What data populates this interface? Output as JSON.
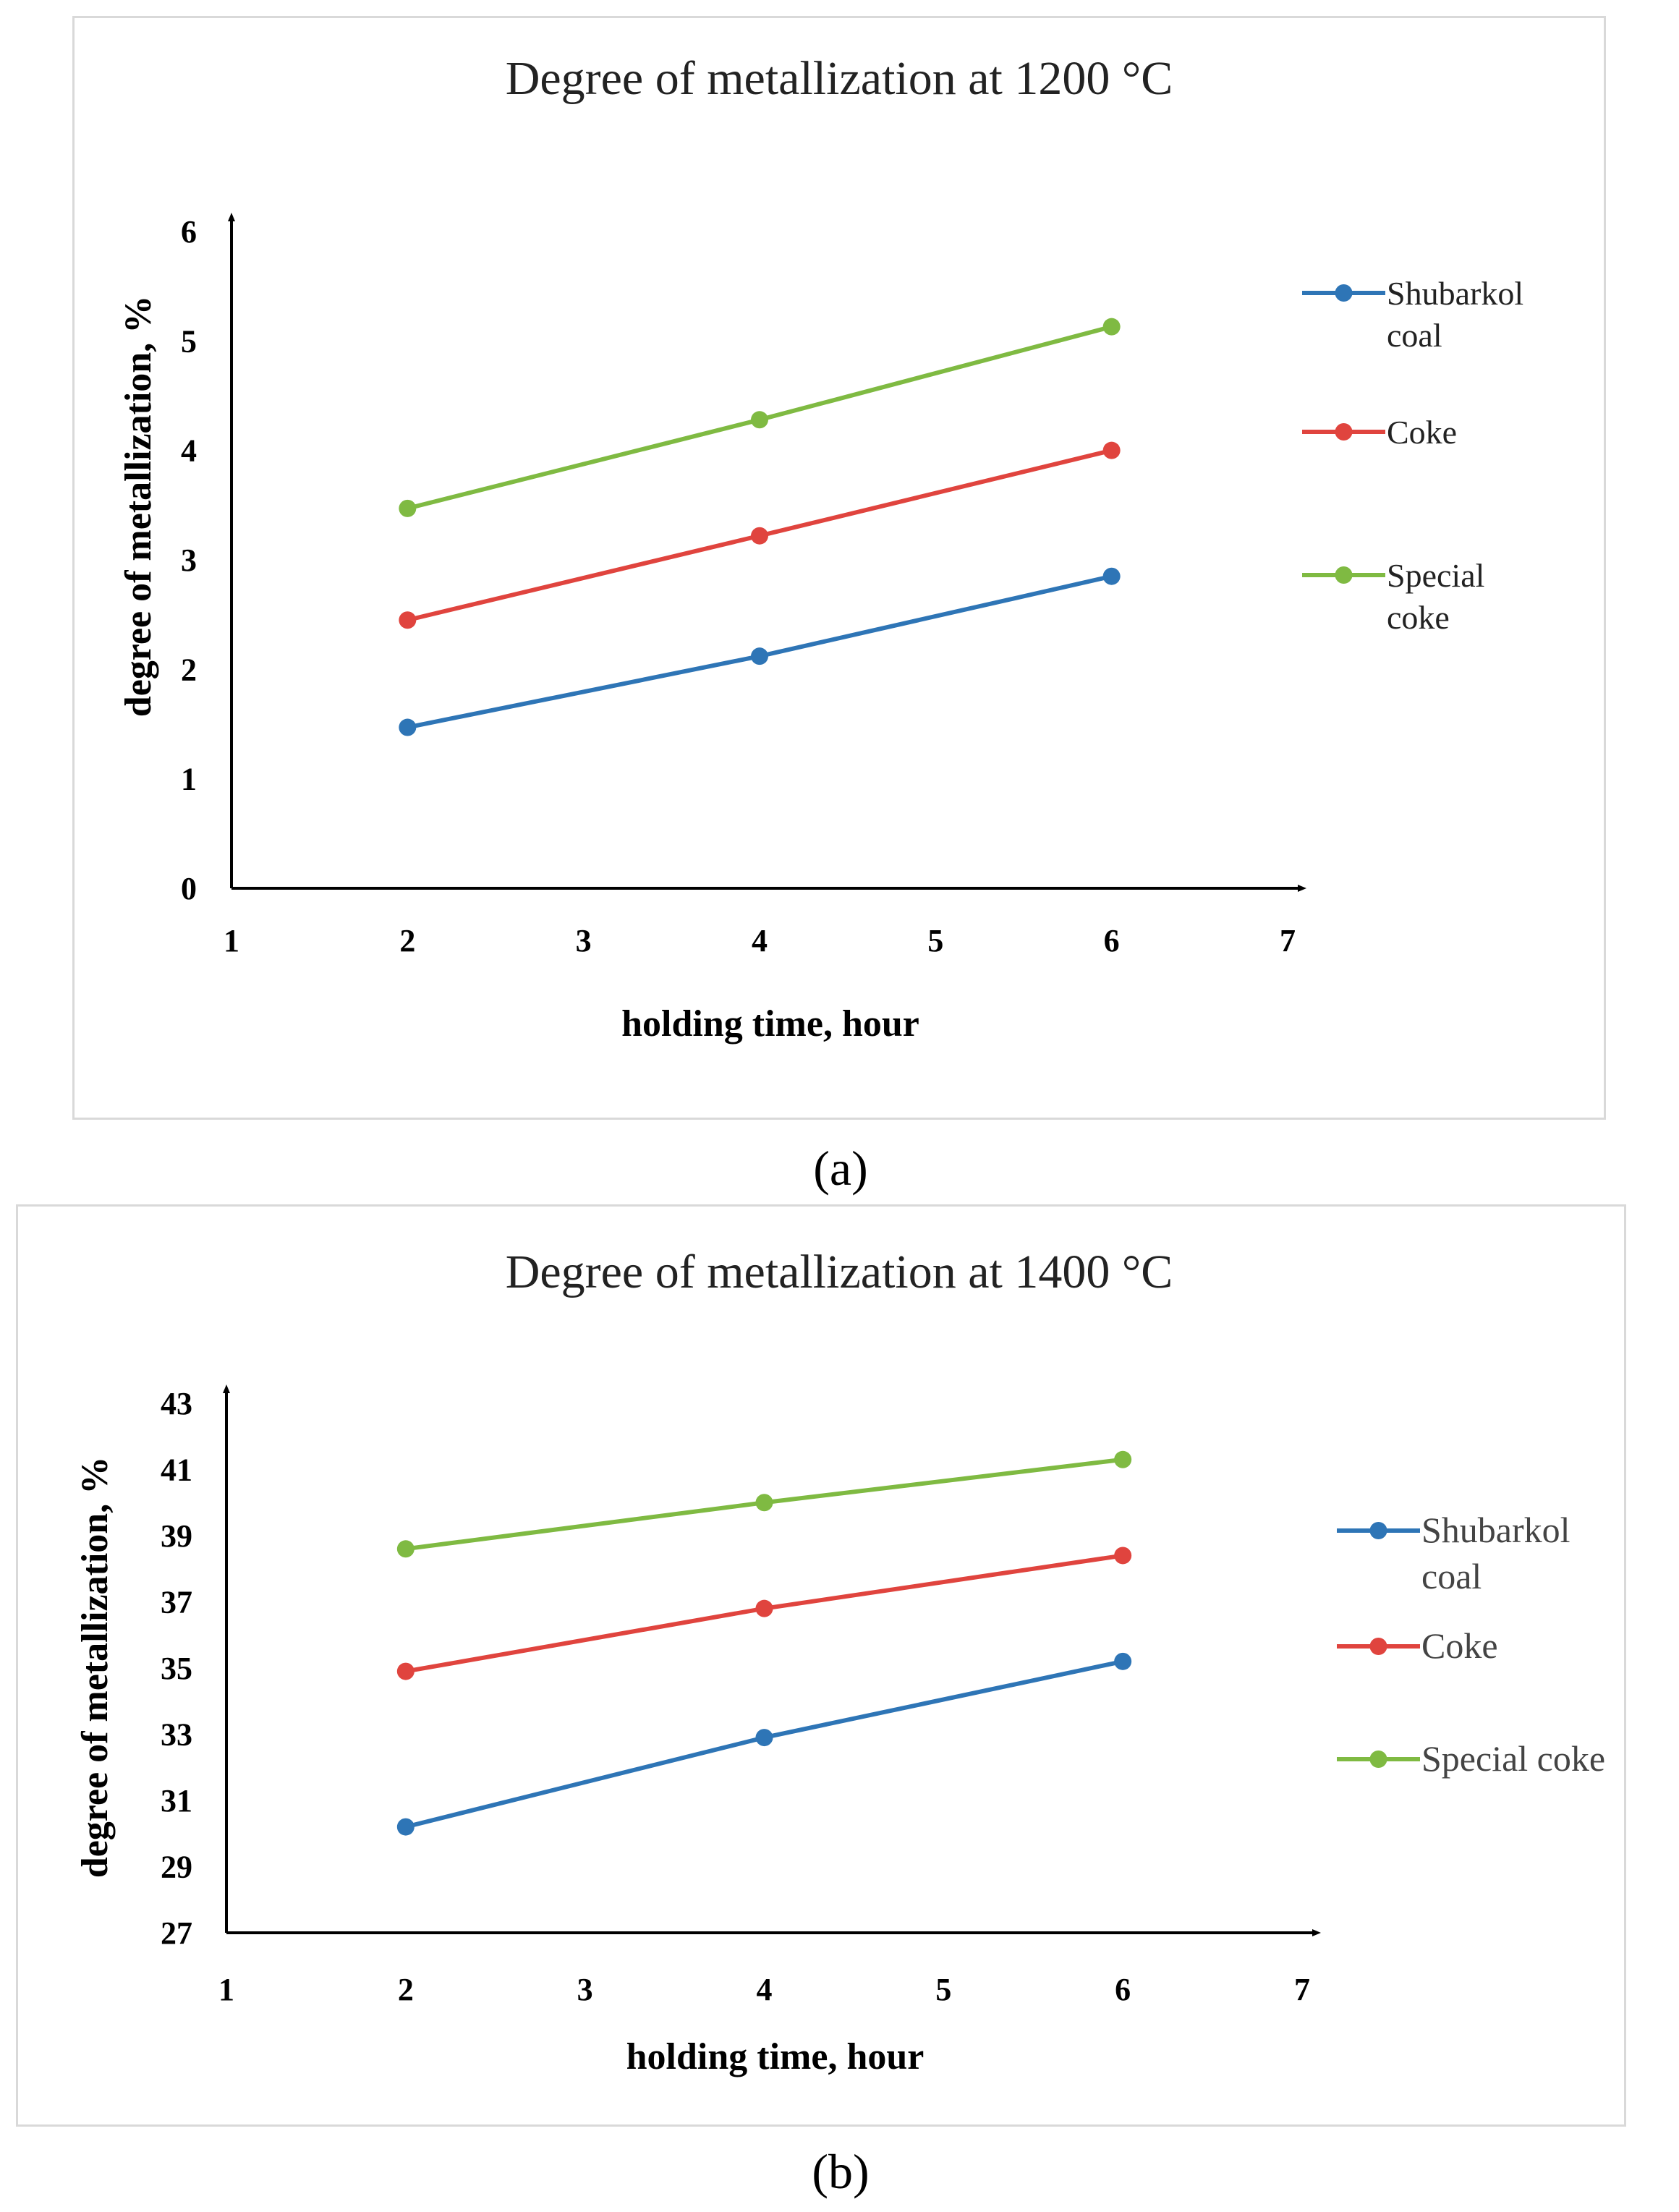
{
  "chart_data": [
    {
      "type": "line",
      "title": "Degree of metallization at 1200 °C",
      "xlabel": "holding time, hour",
      "ylabel": "degree of metallization, %",
      "xlim": [
        1,
        7
      ],
      "ylim": [
        0,
        6
      ],
      "xticks": [
        "1",
        "2",
        "3",
        "4",
        "5",
        "6",
        "7"
      ],
      "yticks": [
        "0",
        "1",
        "2",
        "3",
        "4",
        "5",
        "6"
      ],
      "x": [
        2,
        4,
        6
      ],
      "series": [
        {
          "name": "Shubarkol coal",
          "name_lines": [
            "Shubarkol",
            "coal"
          ],
          "color": "#2e75b6",
          "values": [
            1.47,
            2.12,
            2.85
          ]
        },
        {
          "name": "Coke",
          "name_lines": [
            "Coke"
          ],
          "color": "#e0443e",
          "values": [
            2.45,
            3.22,
            4.0
          ]
        },
        {
          "name": "Special coke",
          "name_lines": [
            "Special",
            "coke"
          ],
          "color": "#7fba42",
          "values": [
            3.47,
            4.28,
            5.13
          ]
        }
      ],
      "grid": false,
      "legend": "right",
      "caption": "(a)"
    },
    {
      "type": "line",
      "title": "Degree of metallization at 1400 °C",
      "xlabel": "holding time, hour",
      "ylabel": "degree of metallization, %",
      "xlim": [
        1,
        7
      ],
      "ylim": [
        27,
        43
      ],
      "xticks": [
        "1",
        "2",
        "3",
        "4",
        "5",
        "6",
        "7"
      ],
      "yticks": [
        "27",
        "29",
        "31",
        "33",
        "35",
        "37",
        "39",
        "41",
        "43"
      ],
      "x": [
        2,
        4,
        6
      ],
      "series": [
        {
          "name": "Shubarkol coal",
          "name_lines": [
            "Shubarkol",
            "coal"
          ],
          "color": "#2e75b6",
          "values": [
            30.2,
            32.9,
            35.2
          ]
        },
        {
          "name": "Coke",
          "name_lines": [
            "Coke"
          ],
          "color": "#e0443e",
          "values": [
            34.9,
            36.8,
            38.4
          ]
        },
        {
          "name": "Special coke",
          "name_lines": [
            "Special coke"
          ],
          "color": "#7fba42",
          "values": [
            38.6,
            40.0,
            41.3
          ]
        }
      ],
      "grid": false,
      "legend": "right",
      "caption": "(b)"
    }
  ]
}
